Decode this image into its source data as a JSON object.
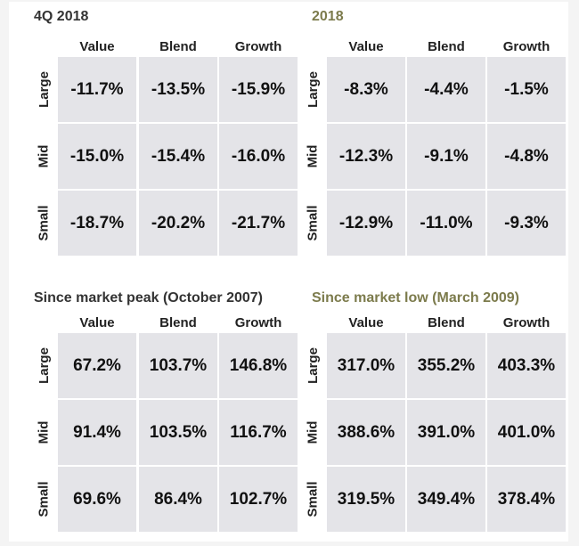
{
  "colors": {
    "highlight_title": "#7c7b4c",
    "cell_bg": "#e4e4e8"
  },
  "panels": [
    {
      "title": "4Q 2018",
      "columns": [
        "Value",
        "Blend",
        "Growth"
      ],
      "rows": [
        {
          "label": "Large",
          "values": [
            "-11.7%",
            "-13.5%",
            "-15.9%"
          ]
        },
        {
          "label": "Mid",
          "values": [
            "-15.0%",
            "-15.4%",
            "-16.0%"
          ]
        },
        {
          "label": "Small",
          "values": [
            "-18.7%",
            "-20.2%",
            "-21.7%"
          ]
        }
      ]
    },
    {
      "title": "2018",
      "columns": [
        "Value",
        "Blend",
        "Growth"
      ],
      "rows": [
        {
          "label": "Large",
          "values": [
            "-8.3%",
            "-4.4%",
            "-1.5%"
          ]
        },
        {
          "label": "Mid",
          "values": [
            "-12.3%",
            "-9.1%",
            "-4.8%"
          ]
        },
        {
          "label": "Small",
          "values": [
            "-12.9%",
            "-11.0%",
            "-9.3%"
          ]
        }
      ]
    },
    {
      "title": "Since market peak (October 2007)",
      "columns": [
        "Value",
        "Blend",
        "Growth"
      ],
      "rows": [
        {
          "label": "Large",
          "values": [
            "67.2%",
            "103.7%",
            "146.8%"
          ]
        },
        {
          "label": "Mid",
          "values": [
            "91.4%",
            "103.5%",
            "116.7%"
          ]
        },
        {
          "label": "Small",
          "values": [
            "69.6%",
            "86.4%",
            "102.7%"
          ]
        }
      ]
    },
    {
      "title": "Since market low (March 2009)",
      "columns": [
        "Value",
        "Blend",
        "Growth"
      ],
      "rows": [
        {
          "label": "Large",
          "values": [
            "317.0%",
            "355.2%",
            "403.3%"
          ]
        },
        {
          "label": "Mid",
          "values": [
            "388.6%",
            "391.0%",
            "401.0%"
          ]
        },
        {
          "label": "Small",
          "values": [
            "319.5%",
            "349.4%",
            "378.4%"
          ]
        }
      ]
    }
  ]
}
